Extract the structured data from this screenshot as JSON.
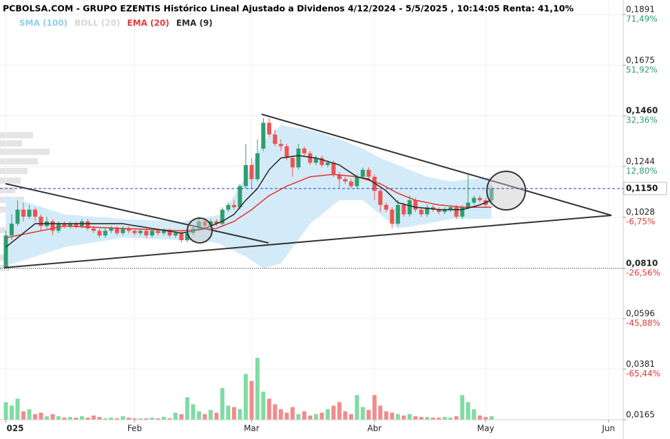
{
  "chart_data": {
    "type": "candlestick",
    "title": "PCBOLSA.COM - GRUPO EZENTIS Histórico Lineal Ajustado a Dividenos 4/12/2024 - 5/5/2025 , 10:14:05 Renta: 41,10%",
    "up_color": "#2e9e6e",
    "down_color": "#ef5350",
    "volume_up_color": "#7fdca2",
    "volume_down_color": "#f28b8b",
    "ylim": [
      0.0165,
      0.1953
    ],
    "yticks": [
      {
        "value": 0.1891,
        "label": "0,1891",
        "change": "71,49%"
      },
      {
        "value": 0.1675,
        "label": "0,1675",
        "change": "51,92%"
      },
      {
        "value": 0.146,
        "label": "0,1460",
        "change": "32,36%",
        "bold": true
      },
      {
        "value": 0.1244,
        "label": "0,1244",
        "change": "12,80%"
      },
      {
        "value": 0.1028,
        "label": "0,1028",
        "change": "-6,75%"
      },
      {
        "value": 0.081,
        "label": "0,0810",
        "change": "-26,56%",
        "bold": true
      },
      {
        "value": 0.0596,
        "label": "0,0596",
        "change": "-45,88%"
      },
      {
        "value": 0.0381,
        "label": "0,0381",
        "change": "-65,44%"
      },
      {
        "value": 0.0165,
        "label": "0,0165"
      }
    ],
    "last_price": {
      "value": 0.115,
      "label": "0,1150",
      "color": "#1f3ad6"
    },
    "baseline": 0.081,
    "xlim": [
      -1,
      105.5
    ],
    "xticks": [
      {
        "value": 0,
        "label": "025"
      },
      {
        "value": 22,
        "label": "Feb"
      },
      {
        "value": 42,
        "label": "Mar"
      },
      {
        "value": 63,
        "label": "Abr"
      },
      {
        "value": 82,
        "label": "May"
      },
      {
        "value": 103,
        "label": "Jun"
      }
    ],
    "open": [
      0.081,
      0.095,
      0.1,
      0.106,
      0.103,
      0.106,
      0.103,
      0.099,
      0.101,
      0.097,
      0.1,
      0.099,
      0.1,
      0.099,
      0.101,
      0.098,
      0.097,
      0.095,
      0.097,
      0.098,
      0.096,
      0.098,
      0.097,
      0.096,
      0.097,
      0.095,
      0.097,
      0.096,
      0.097,
      0.095,
      0.096,
      0.093,
      0.096,
      0.098,
      0.101,
      0.099,
      0.101,
      0.1,
      0.106,
      0.108,
      0.107,
      0.116,
      0.125,
      0.119,
      0.132,
      0.143,
      0.138,
      0.134,
      0.133,
      0.128,
      0.124,
      0.132,
      0.13,
      0.126,
      0.128,
      0.125,
      0.126,
      0.121,
      0.119,
      0.118,
      0.116,
      0.12,
      0.123,
      0.12,
      0.114,
      0.108,
      0.106,
      0.1,
      0.108,
      0.104,
      0.11,
      0.106,
      0.104,
      0.107,
      0.106,
      0.105,
      0.106,
      0.107,
      0.103,
      0.107,
      0.109,
      0.111,
      0.11,
      0.11
    ],
    "high": [
      0.097,
      0.104,
      0.11,
      0.109,
      0.108,
      0.107,
      0.104,
      0.103,
      0.102,
      0.101,
      0.101,
      0.101,
      0.101,
      0.102,
      0.102,
      0.099,
      0.098,
      0.098,
      0.099,
      0.099,
      0.099,
      0.099,
      0.098,
      0.098,
      0.098,
      0.098,
      0.098,
      0.098,
      0.098,
      0.097,
      0.097,
      0.097,
      0.099,
      0.103,
      0.102,
      0.102,
      0.102,
      0.107,
      0.109,
      0.11,
      0.117,
      0.134,
      0.128,
      0.136,
      0.145,
      0.145,
      0.14,
      0.136,
      0.134,
      0.129,
      0.134,
      0.133,
      0.131,
      0.129,
      0.129,
      0.127,
      0.127,
      0.122,
      0.12,
      0.119,
      0.121,
      0.124,
      0.124,
      0.121,
      0.115,
      0.109,
      0.107,
      0.11,
      0.109,
      0.112,
      0.111,
      0.107,
      0.108,
      0.108,
      0.107,
      0.107,
      0.108,
      0.108,
      0.108,
      0.121,
      0.112,
      0.112,
      0.111,
      0.116
    ],
    "low": [
      0.081,
      0.093,
      0.099,
      0.101,
      0.102,
      0.101,
      0.097,
      0.098,
      0.095,
      0.096,
      0.098,
      0.098,
      0.098,
      0.098,
      0.097,
      0.096,
      0.094,
      0.094,
      0.096,
      0.095,
      0.095,
      0.096,
      0.095,
      0.095,
      0.094,
      0.094,
      0.095,
      0.095,
      0.094,
      0.094,
      0.092,
      0.092,
      0.095,
      0.097,
      0.098,
      0.098,
      0.099,
      0.099,
      0.105,
      0.106,
      0.106,
      0.115,
      0.115,
      0.118,
      0.131,
      0.137,
      0.133,
      0.131,
      0.127,
      0.12,
      0.123,
      0.129,
      0.125,
      0.125,
      0.124,
      0.124,
      0.12,
      0.115,
      0.117,
      0.115,
      0.115,
      0.119,
      0.119,
      0.11,
      0.105,
      0.105,
      0.098,
      0.099,
      0.103,
      0.103,
      0.105,
      0.103,
      0.103,
      0.105,
      0.104,
      0.104,
      0.105,
      0.102,
      0.102,
      0.106,
      0.108,
      0.109,
      0.107,
      0.109
    ],
    "close": [
      0.095,
      0.1,
      0.106,
      0.103,
      0.106,
      0.103,
      0.099,
      0.101,
      0.097,
      0.1,
      0.099,
      0.1,
      0.099,
      0.101,
      0.098,
      0.097,
      0.095,
      0.097,
      0.098,
      0.096,
      0.098,
      0.097,
      0.096,
      0.097,
      0.095,
      0.097,
      0.096,
      0.097,
      0.095,
      0.096,
      0.093,
      0.096,
      0.098,
      0.101,
      0.099,
      0.101,
      0.1,
      0.106,
      0.108,
      0.107,
      0.116,
      0.125,
      0.119,
      0.13,
      0.143,
      0.138,
      0.134,
      0.133,
      0.128,
      0.124,
      0.132,
      0.13,
      0.126,
      0.128,
      0.125,
      0.126,
      0.121,
      0.119,
      0.118,
      0.116,
      0.12,
      0.123,
      0.12,
      0.114,
      0.108,
      0.106,
      0.1,
      0.108,
      0.104,
      0.11,
      0.106,
      0.104,
      0.107,
      0.106,
      0.105,
      0.106,
      0.107,
      0.103,
      0.107,
      0.109,
      0.111,
      0.11,
      0.108,
      0.115
    ],
    "volume": [
      25,
      20,
      30,
      12,
      15,
      8,
      10,
      5,
      8,
      5,
      3,
      4,
      3,
      5,
      3,
      6,
      4,
      2,
      3,
      2,
      5,
      3,
      2,
      2,
      2,
      3,
      2,
      4,
      2,
      10,
      8,
      32,
      22,
      12,
      8,
      14,
      10,
      45,
      20,
      18,
      15,
      65,
      55,
      88,
      40,
      30,
      22,
      15,
      10,
      18,
      8,
      12,
      6,
      8,
      10,
      15,
      20,
      25,
      12,
      8,
      35,
      18,
      14,
      35,
      20,
      12,
      10,
      8,
      6,
      8,
      5,
      4,
      4,
      3,
      3,
      4,
      3,
      5,
      35,
      25,
      15,
      6,
      4,
      5
    ],
    "series": [
      {
        "name": "SMA (100)",
        "color": "#8ccff0"
      },
      {
        "name": "BOLL (20)",
        "color": "#d6d6d6",
        "fill": "#d3ebf8",
        "upper": [
          0.112,
          0.1112,
          0.1104,
          0.1096,
          0.1088,
          0.108,
          0.1072,
          0.1064,
          0.1056,
          0.1048,
          0.104,
          0.1038,
          0.1036,
          0.1034,
          0.1032,
          0.103,
          0.1028,
          0.1026,
          0.1024,
          0.1022,
          0.102,
          0.1019,
          0.1018,
          0.1017,
          0.1016,
          0.1015,
          0.1014,
          0.1013,
          0.1012,
          0.1011,
          0.101,
          0.1014,
          0.1019,
          0.1023,
          0.1027,
          0.1031,
          0.1036,
          0.104,
          0.108,
          0.112,
          0.116,
          0.12,
          0.125,
          0.13,
          0.135,
          0.1373,
          0.1397,
          0.142,
          0.1416,
          0.1412,
          0.1408,
          0.1404,
          0.14,
          0.1392,
          0.1384,
          0.1376,
          0.1368,
          0.136,
          0.135,
          0.134,
          0.133,
          0.132,
          0.1307,
          0.1293,
          0.128,
          0.127,
          0.126,
          0.125,
          0.124,
          0.123,
          0.122,
          0.121,
          0.12,
          0.1195,
          0.119,
          0.1185,
          0.118,
          0.1183,
          0.1186,
          0.1189,
          0.1191,
          0.1194,
          0.1197,
          0.12
        ],
        "lower": [
          0.082,
          0.0828,
          0.0836,
          0.0844,
          0.0852,
          0.086,
          0.0868,
          0.0876,
          0.0884,
          0.0892,
          0.09,
          0.0904,
          0.0908,
          0.0912,
          0.0916,
          0.092,
          0.0924,
          0.0928,
          0.0932,
          0.0936,
          0.094,
          0.0939,
          0.0938,
          0.0937,
          0.0936,
          0.0935,
          0.0934,
          0.0933,
          0.0932,
          0.0931,
          0.093,
          0.0928,
          0.0927,
          0.0925,
          0.0923,
          0.0922,
          0.092,
          0.0908,
          0.0896,
          0.0884,
          0.0872,
          0.086,
          0.0843,
          0.0827,
          0.081,
          0.0817,
          0.0823,
          0.083,
          0.0864,
          0.0898,
          0.0932,
          0.0966,
          0.1,
          0.102,
          0.104,
          0.106,
          0.108,
          0.11,
          0.11,
          0.11,
          0.11,
          0.11,
          0.108,
          0.106,
          0.104,
          0.102,
          0.1,
          0.098,
          0.0984,
          0.0988,
          0.0992,
          0.0996,
          0.1,
          0.1005,
          0.101,
          0.1015,
          0.102,
          0.102,
          0.102,
          0.102,
          0.102,
          0.102,
          0.102,
          0.102
        ]
      },
      {
        "name": "EMA (20)",
        "color": "#e53935",
        "values": [
          0.094,
          0.0945,
          0.095,
          0.0955,
          0.096,
          0.0965,
          0.097,
          0.0975,
          0.098,
          0.0985,
          0.099,
          0.0989,
          0.0988,
          0.0987,
          0.0986,
          0.0985,
          0.0984,
          0.0983,
          0.0982,
          0.0981,
          0.098,
          0.0979,
          0.0978,
          0.0977,
          0.0976,
          0.0975,
          0.0974,
          0.0973,
          0.0972,
          0.0971,
          0.097,
          0.0972,
          0.0973,
          0.0975,
          0.0977,
          0.0978,
          0.098,
          0.099,
          0.1,
          0.101,
          0.1027,
          0.1043,
          0.106,
          0.108,
          0.11,
          0.112,
          0.1133,
          0.1147,
          0.116,
          0.117,
          0.118,
          0.119,
          0.12,
          0.1203,
          0.1205,
          0.1208,
          0.121,
          0.1208,
          0.1205,
          0.1203,
          0.12,
          0.1193,
          0.1185,
          0.1178,
          0.117,
          0.1157,
          0.1143,
          0.113,
          0.112,
          0.111,
          0.11,
          0.1095,
          0.109,
          0.1085,
          0.108,
          0.1078,
          0.1075,
          0.1073,
          0.107,
          0.107,
          0.107,
          0.107,
          0.107,
          0.107
        ]
      },
      {
        "name": "EMA (9)",
        "color": "#2b2b2b",
        "values": [
          0.09,
          0.092,
          0.094,
          0.096,
          0.098,
          0.1,
          0.1,
          0.1,
          0.1,
          0.1,
          0.1,
          0.1,
          0.1,
          0.1,
          0.1,
          0.1,
          0.1,
          0.1,
          0.1,
          0.1,
          0.1,
          0.0996,
          0.0992,
          0.0988,
          0.0984,
          0.098,
          0.0976,
          0.0972,
          0.0968,
          0.0964,
          0.096,
          0.0965,
          0.097,
          0.0975,
          0.098,
          0.099,
          0.1,
          0.101,
          0.1025,
          0.104,
          0.107,
          0.11,
          0.1125,
          0.115,
          0.119,
          0.123,
          0.1255,
          0.128,
          0.1283,
          0.1287,
          0.129,
          0.1287,
          0.1283,
          0.128,
          0.1273,
          0.1265,
          0.1258,
          0.125,
          0.1233,
          0.1217,
          0.12,
          0.1195,
          0.119,
          0.1173,
          0.1157,
          0.114,
          0.1115,
          0.109,
          0.1083,
          0.1077,
          0.107,
          0.1068,
          0.1065,
          0.1063,
          0.106,
          0.106,
          0.106,
          0.106,
          0.106,
          0.1067,
          0.1073,
          0.108,
          0.109,
          0.11
        ]
      }
    ],
    "grid": true
  }
}
